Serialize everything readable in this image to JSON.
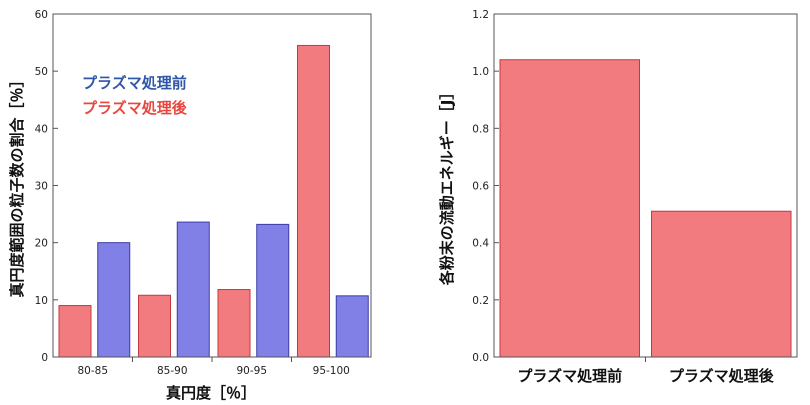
{
  "chart_data": [
    {
      "type": "bar",
      "categories": [
        "80-85",
        "85-90",
        "90-95",
        "95-100"
      ],
      "series": [
        {
          "name": "プラズマ処理後",
          "color": "#f27b7f",
          "values": [
            9,
            10.8,
            11.8,
            54.5
          ]
        },
        {
          "name": "プラズマ処理前",
          "color": "#8080e6",
          "values": [
            20,
            23.6,
            23.2,
            10.7
          ]
        }
      ],
      "xlabel": "真円度［％］",
      "ylabel": "真円度範囲の粒子数の割合［％］",
      "ylim": [
        0,
        60
      ],
      "yticks": [
        0,
        10,
        20,
        30,
        40,
        50,
        60
      ],
      "legend": {
        "placement": "upper-left",
        "entries": [
          {
            "label": "プラズマ処理前",
            "color": "#2f56a8"
          },
          {
            "label": "プラズマ処理後",
            "color": "#e8463e"
          }
        ]
      },
      "grid": false
    },
    {
      "type": "bar",
      "categories": [
        "プラズマ処理前",
        "プラズマ処理後"
      ],
      "values": [
        1.04,
        0.51
      ],
      "color": "#f27b7f",
      "xlabel": "",
      "ylabel": "各粉末の流動エネルギー［J］",
      "ylim": [
        0,
        1.2
      ],
      "yticks": [
        "0.0",
        "0.2",
        "0.4",
        "0.6",
        "0.8",
        "1.0",
        "1.2"
      ],
      "grid": false
    }
  ]
}
